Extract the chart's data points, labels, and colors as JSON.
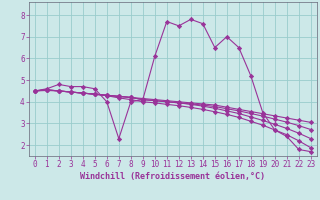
{
  "xlabel": "Windchill (Refroidissement éolien,°C)",
  "bg_color": "#cce8e8",
  "line_color": "#993399",
  "grid_color": "#99cccc",
  "axes_color": "#666677",
  "xlim": [
    -0.5,
    23.5
  ],
  "ylim": [
    1.5,
    8.6
  ],
  "xticks": [
    0,
    1,
    2,
    3,
    4,
    5,
    6,
    7,
    8,
    9,
    10,
    11,
    12,
    13,
    14,
    15,
    16,
    17,
    18,
    19,
    20,
    21,
    22,
    23
  ],
  "yticks": [
    2,
    3,
    4,
    5,
    6,
    7,
    8
  ],
  "series": [
    [
      4.5,
      4.6,
      4.8,
      4.7,
      4.7,
      4.6,
      4.0,
      2.3,
      4.0,
      4.1,
      6.1,
      7.7,
      7.5,
      7.8,
      7.6,
      6.5,
      7.0,
      6.5,
      5.2,
      3.5,
      2.7,
      2.4,
      1.8,
      1.7
    ],
    [
      4.5,
      4.55,
      4.5,
      4.45,
      4.4,
      4.35,
      4.3,
      4.25,
      4.2,
      4.15,
      4.1,
      4.05,
      4.0,
      3.95,
      3.9,
      3.85,
      3.75,
      3.65,
      3.55,
      3.45,
      3.35,
      3.25,
      3.15,
      3.05
    ],
    [
      4.5,
      4.55,
      4.5,
      4.45,
      4.4,
      4.35,
      4.3,
      4.25,
      4.2,
      4.1,
      4.05,
      4.0,
      3.95,
      3.9,
      3.85,
      3.78,
      3.68,
      3.58,
      3.46,
      3.34,
      3.2,
      3.06,
      2.9,
      2.72
    ],
    [
      4.5,
      4.55,
      4.5,
      4.45,
      4.4,
      4.35,
      4.3,
      4.25,
      4.2,
      4.1,
      4.05,
      4.0,
      3.95,
      3.88,
      3.8,
      3.7,
      3.58,
      3.46,
      3.3,
      3.14,
      2.96,
      2.77,
      2.55,
      2.3
    ],
    [
      4.5,
      4.52,
      4.5,
      4.45,
      4.4,
      4.35,
      4.28,
      4.18,
      4.1,
      4.0,
      3.95,
      3.88,
      3.82,
      3.74,
      3.65,
      3.54,
      3.42,
      3.28,
      3.1,
      2.92,
      2.7,
      2.48,
      2.2,
      1.88
    ]
  ],
  "marker": "D",
  "markersize": 2.2,
  "linewidth": 0.8,
  "tick_fontsize": 5.5,
  "xlabel_fontsize": 6.0
}
